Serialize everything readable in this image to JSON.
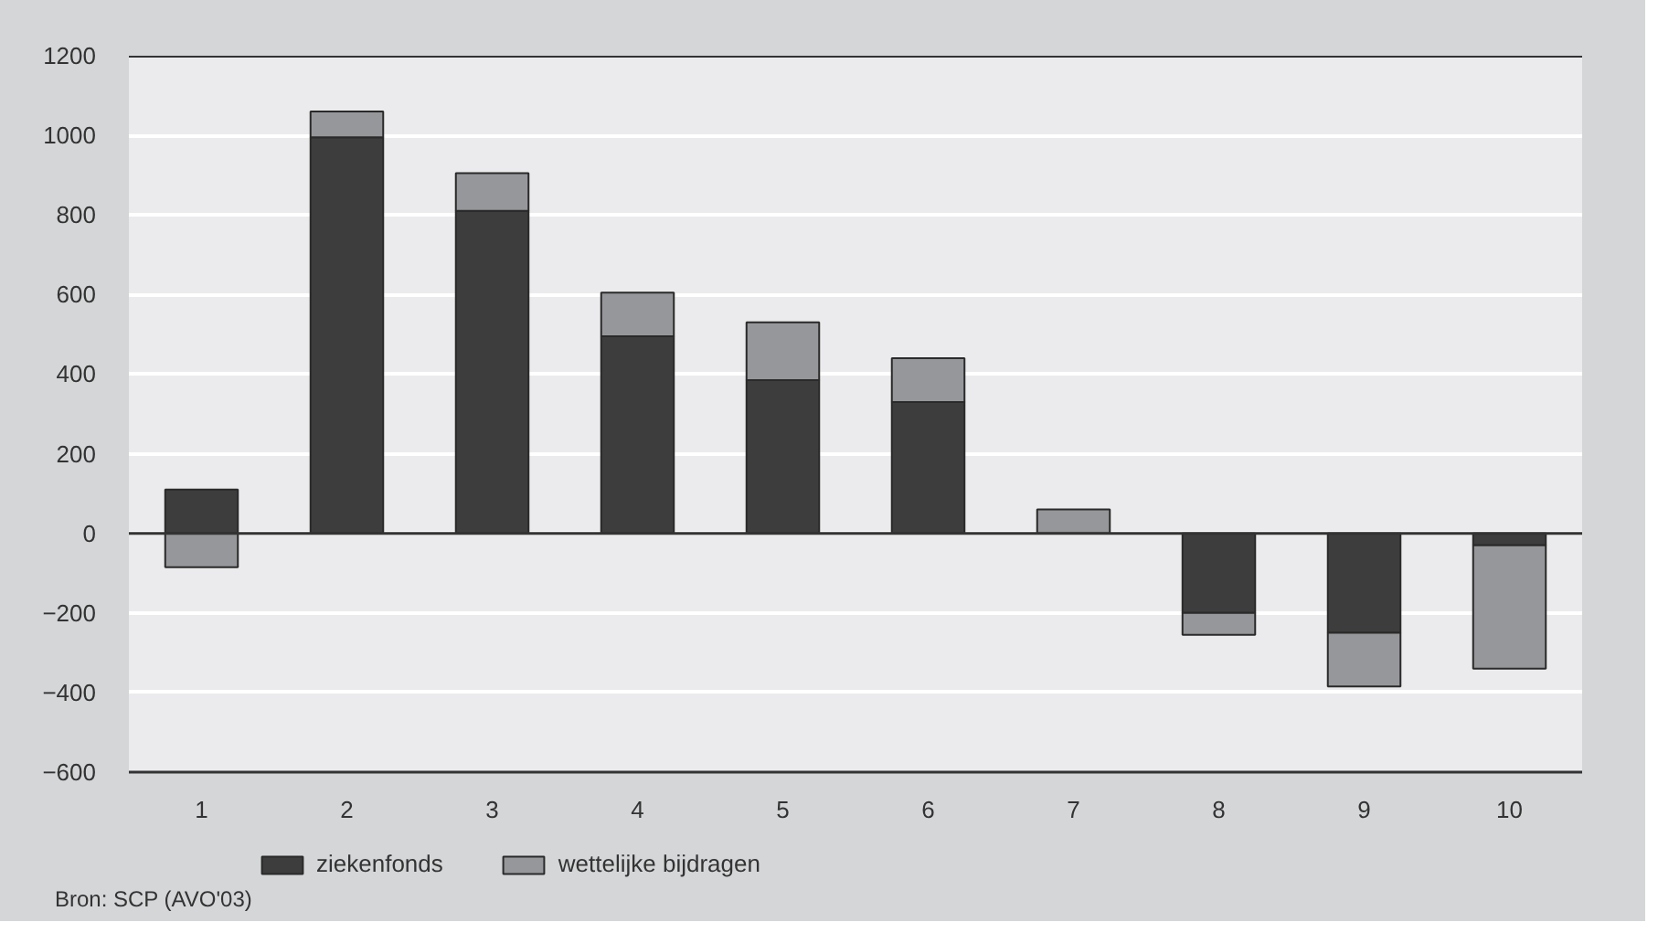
{
  "chart_data": {
    "type": "bar",
    "stacked": true,
    "categories": [
      "1",
      "2",
      "3",
      "4",
      "5",
      "6",
      "7",
      "8",
      "9",
      "10"
    ],
    "series": [
      {
        "name": "ziekenfonds",
        "color": "#3d3d3d",
        "values": [
          110,
          995,
          810,
          495,
          385,
          330,
          0,
          -200,
          -250,
          -30
        ]
      },
      {
        "name": "wettelijke bijdragen",
        "color": "#96979a",
        "values": [
          -85,
          65,
          95,
          110,
          145,
          110,
          60,
          -55,
          -135,
          -310
        ]
      }
    ],
    "ylim": [
      -600,
      1200
    ],
    "yticks": [
      {
        "value": -600,
        "label": "−600"
      },
      {
        "value": -400,
        "label": "−400"
      },
      {
        "value": -200,
        "label": "−200"
      },
      0,
      200,
      400,
      600,
      800,
      1000,
      1200
    ],
    "grid": "y",
    "legend": "bottom",
    "annotations": [
      "Bron: SCP (AVO'03)"
    ]
  }
}
